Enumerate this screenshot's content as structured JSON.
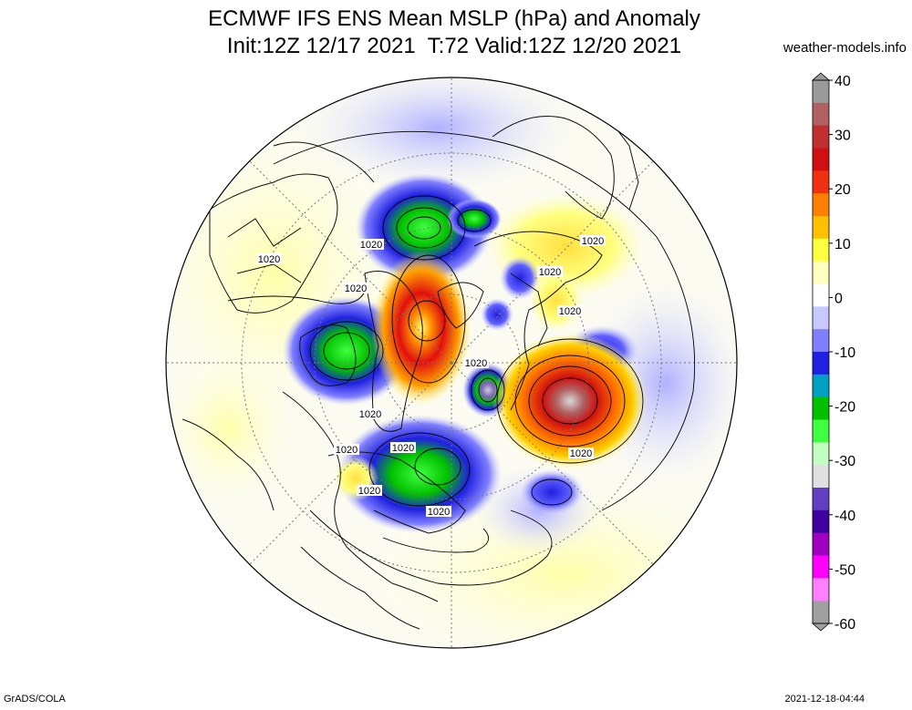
{
  "title_line1": "ECMWF IFS ENS Mean MSLP (hPa) and Anomaly",
  "title_line2": "Init:12Z 12/17 2021  T:72 Valid:12Z 12/20 2021",
  "credit": "weather-models.info",
  "footer_left": "GrADS/COLA",
  "footer_right": "2021-12-18-04:44",
  "colorbar": {
    "ticks": [
      "40",
      "30",
      "20",
      "10",
      "0",
      "-10",
      "-20",
      "-30",
      "-40",
      "-50",
      "-60"
    ],
    "colors": [
      "#9a9a9a",
      "#b06060",
      "#c03030",
      "#d01010",
      "#f03010",
      "#ff8000",
      "#ffc000",
      "#ffff40",
      "#ffffc0",
      "#ffffff",
      "#c8c8ff",
      "#8080ff",
      "#2020e0",
      "#00a0c0",
      "#00c000",
      "#40ff40",
      "#c0ffc0",
      "#e0e0e0",
      "#6040c0",
      "#4000a0",
      "#a000c0",
      "#ff00ff",
      "#ff80ff",
      "#a0a0a0"
    ]
  },
  "contour_labels": [
    {
      "text": "1020"
    },
    {
      "text": "1020"
    },
    {
      "text": "1020"
    },
    {
      "text": "1020"
    },
    {
      "text": "1020"
    },
    {
      "text": "1020"
    },
    {
      "text": "1020"
    },
    {
      "text": "1020"
    },
    {
      "text": "1020"
    },
    {
      "text": "1020"
    },
    {
      "text": "1020"
    },
    {
      "text": "1020"
    },
    {
      "text": "1020"
    }
  ]
}
